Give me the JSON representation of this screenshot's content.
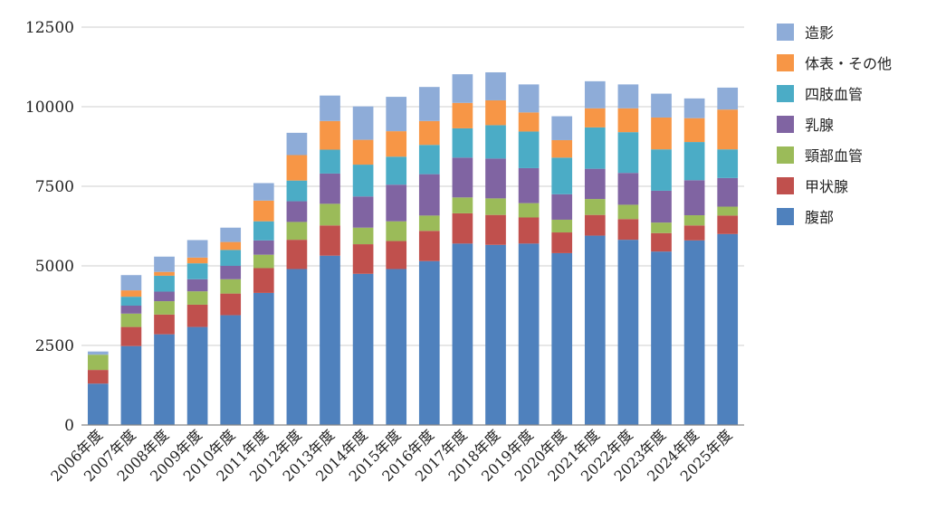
{
  "chart_data": {
    "type": "bar",
    "stacked": true,
    "categories": [
      "2006年度",
      "2007年度",
      "2008年度",
      "2009年度",
      "2010年度",
      "2011年度",
      "2012年度",
      "2013年度",
      "2014年度",
      "2015年度",
      "2016年度",
      "2017年度",
      "2018年度",
      "2019年度",
      "2020年度",
      "2021年度",
      "2022年度",
      "2023年度",
      "2024年度",
      "2025年度"
    ],
    "series": [
      {
        "name": "腹部",
        "color": "#4f81bd",
        "values": [
          1300,
          2480,
          2850,
          3080,
          3450,
          4150,
          4900,
          5320,
          4750,
          4900,
          5150,
          5700,
          5660,
          5700,
          5400,
          5950,
          5820,
          5450,
          5800,
          6000
        ]
      },
      {
        "name": "甲状腺",
        "color": "#c0504d",
        "values": [
          430,
          600,
          620,
          700,
          680,
          780,
          920,
          950,
          930,
          880,
          950,
          950,
          940,
          820,
          650,
          650,
          650,
          580,
          470,
          580
        ]
      },
      {
        "name": "頸部血管",
        "color": "#9bbb59",
        "values": [
          480,
          420,
          420,
          420,
          450,
          420,
          560,
          680,
          520,
          620,
          480,
          500,
          520,
          450,
          400,
          500,
          450,
          330,
          320,
          280
        ]
      },
      {
        "name": "乳腺",
        "color": "#8064a2",
        "values": [
          0,
          250,
          300,
          380,
          420,
          450,
          650,
          950,
          980,
          1150,
          1300,
          1250,
          1250,
          1100,
          800,
          950,
          1000,
          1000,
          1100,
          900
        ]
      },
      {
        "name": "四肢血管",
        "color": "#4bacc6",
        "values": [
          0,
          280,
          500,
          500,
          500,
          600,
          650,
          750,
          1000,
          880,
          920,
          920,
          1050,
          1150,
          1150,
          1300,
          1280,
          1300,
          1200,
          900
        ]
      },
      {
        "name": "体表・その他",
        "color": "#f79646",
        "values": [
          0,
          200,
          120,
          180,
          250,
          650,
          800,
          900,
          780,
          800,
          750,
          800,
          780,
          600,
          550,
          600,
          750,
          1000,
          750,
          1250
        ]
      },
      {
        "name": "造影",
        "color": "#8eacd8",
        "values": [
          100,
          480,
          480,
          550,
          450,
          550,
          700,
          800,
          1050,
          1080,
          1070,
          900,
          880,
          880,
          750,
          850,
          750,
          750,
          620,
          690
        ]
      }
    ],
    "ylim": [
      0,
      12500
    ],
    "yticks": [
      0,
      2500,
      5000,
      7500,
      10000,
      12500
    ],
    "grid": true,
    "legend": "right",
    "legend_order": [
      "造影",
      "体表・その他",
      "四肢血管",
      "乳腺",
      "頸部血管",
      "甲状腺",
      "腹部"
    ]
  }
}
